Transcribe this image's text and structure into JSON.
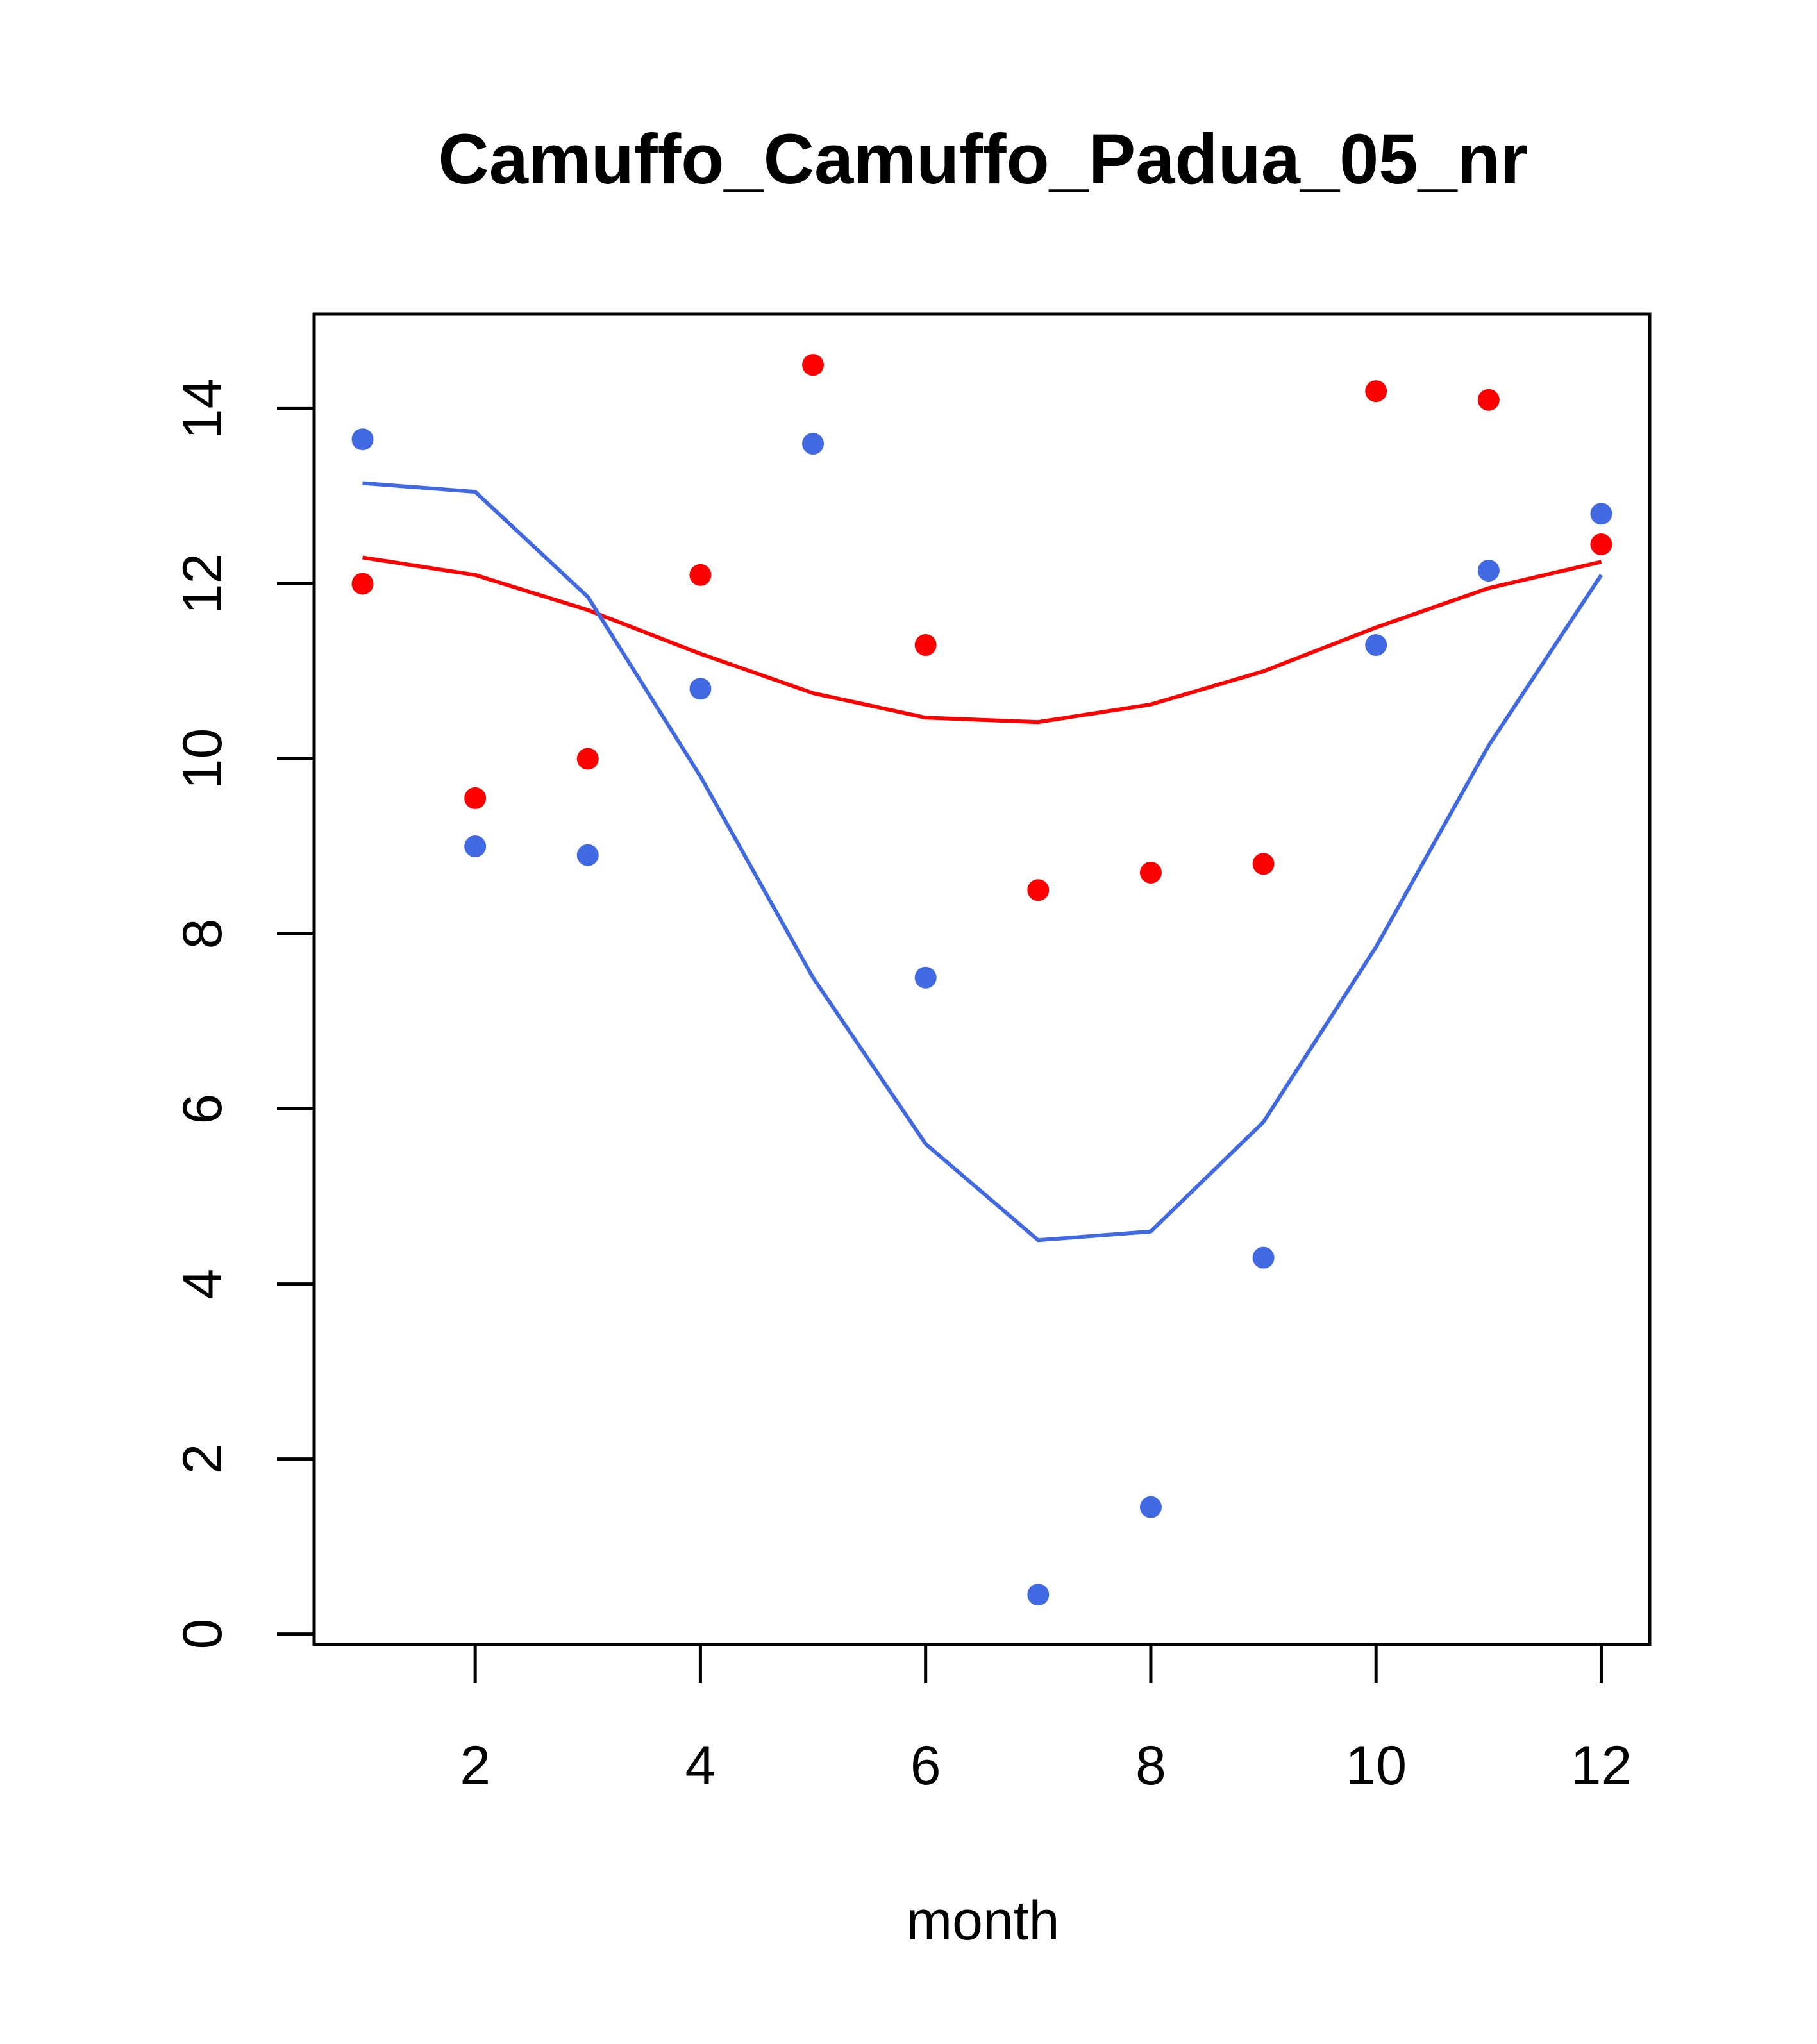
{
  "chart_data": {
    "type": "scatter",
    "title": "Camuffo_Camuffo_Padua_05_nr",
    "xlabel": "month",
    "ylabel": "",
    "xlim": [
      0.57,
      12.43
    ],
    "ylim": [
      -0.12,
      15.08
    ],
    "x_ticks": [
      2,
      4,
      6,
      8,
      10,
      12
    ],
    "x_tick_labels": [
      "2",
      "4",
      "6",
      "8",
      "10",
      "12"
    ],
    "y_ticks": [
      0,
      2,
      4,
      6,
      8,
      10,
      12,
      14
    ],
    "y_tick_labels": [
      "0",
      "2",
      "4",
      "6",
      "8",
      "10",
      "12",
      "14"
    ],
    "grid": false,
    "series": [
      {
        "name": "red-points",
        "kind": "points",
        "color": "#ff0000",
        "x": [
          1,
          2,
          3,
          4,
          5,
          6,
          7,
          8,
          9,
          10,
          11,
          12
        ],
        "y": [
          12.0,
          9.55,
          10.0,
          12.1,
          14.5,
          11.3,
          8.5,
          8.7,
          8.8,
          14.2,
          14.1,
          12.45
        ]
      },
      {
        "name": "blue-points",
        "kind": "points",
        "color": "#4169e1",
        "x": [
          1,
          2,
          3,
          4,
          5,
          6,
          7,
          8,
          9,
          10,
          11,
          12
        ],
        "y": [
          13.65,
          9.0,
          8.9,
          10.8,
          13.6,
          7.5,
          0.45,
          1.45,
          4.3,
          11.3,
          12.15,
          12.8
        ]
      },
      {
        "name": "red-curve",
        "kind": "line",
        "color": "#ff0000",
        "x": [
          1,
          2,
          3,
          4,
          5,
          6,
          7,
          8,
          9,
          10,
          11,
          12
        ],
        "y": [
          12.3,
          12.1,
          11.7,
          11.2,
          10.75,
          10.47,
          10.42,
          10.62,
          11.0,
          11.5,
          11.95,
          12.25
        ]
      },
      {
        "name": "blue-curve",
        "kind": "line",
        "color": "#4169e1",
        "x": [
          1,
          2,
          3,
          4,
          5,
          6,
          7,
          8,
          9,
          10,
          11,
          12
        ],
        "y": [
          13.15,
          13.05,
          11.85,
          9.8,
          7.5,
          5.6,
          4.5,
          4.6,
          5.85,
          7.85,
          10.15,
          12.1
        ]
      }
    ]
  }
}
